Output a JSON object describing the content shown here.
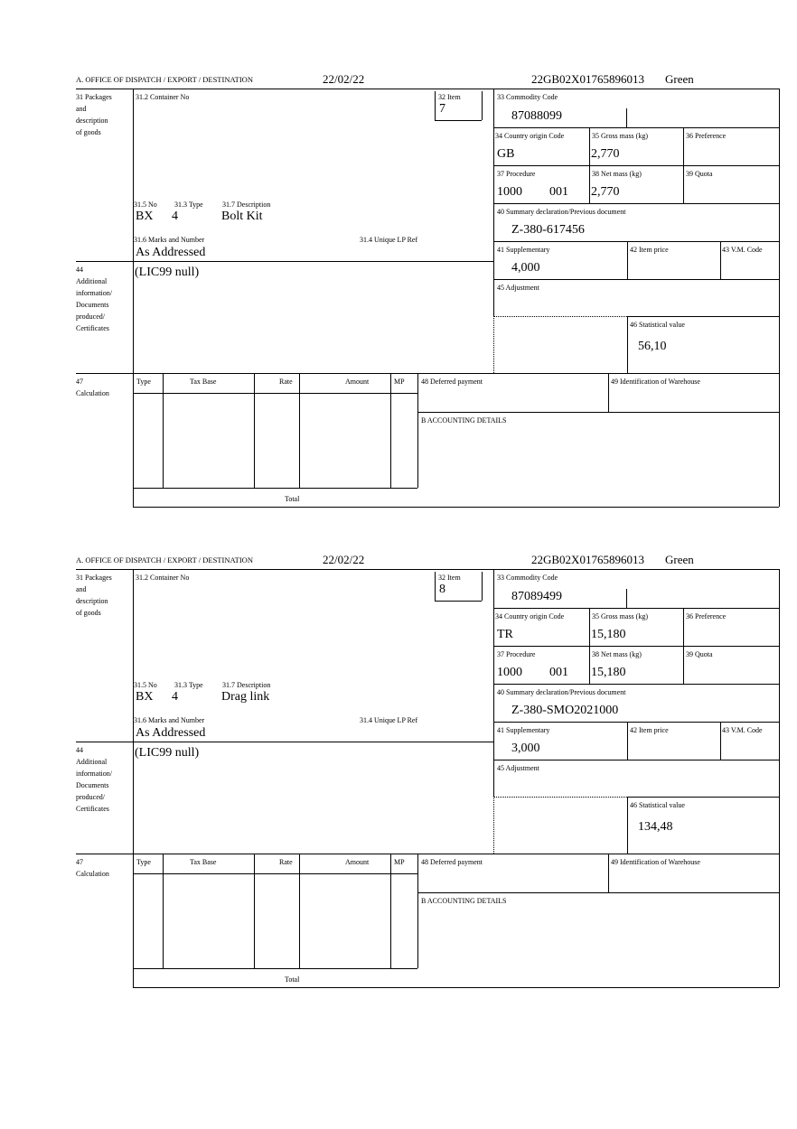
{
  "labels": {
    "office": "A.  OFFICE OF DISPATCH / EXPORT / DESTINATION",
    "packages": [
      "31 Packages",
      "and",
      "description",
      "of goods"
    ],
    "container_no": "31.2 Container No",
    "item": "32 Item",
    "commodity_code": "33 Commodity Code",
    "country_origin": "34 Country origin Code",
    "gross_mass": "35 Gross mass (kg)",
    "preference": "36 Preference",
    "procedure": "37 Procedure",
    "net_mass": "38 Net mass (kg)",
    "quota": "39 Quota",
    "summary_declaration": "40 Summary declaration/Previous document",
    "no": "31.5 No",
    "type": "31.3 Type",
    "description": "31.7 Description",
    "marks": "31.6 Marks and Number",
    "unique_lp_ref": "31.4 Unique LP Ref",
    "supplementary": "41 Supplementary",
    "item_price": "42 Item price",
    "vm_code": "43 V.M. Code",
    "additional_info": [
      "44",
      "Additional",
      "information/",
      "Documents",
      "produced/",
      "Certificates"
    ],
    "adjustment": "45 Adjustment",
    "statistical_value": "46 Statistical value",
    "calculation": [
      "47",
      "Calculation"
    ],
    "calc_columns": [
      "Type",
      "Tax Base",
      "Rate",
      "Amount",
      "MP"
    ],
    "deferred_payment": "48 Deferred payment",
    "warehouse": "49 Identification of Warehouse",
    "accounting": "B ACCOUNTING DETAILS",
    "total": "Total"
  },
  "forms": [
    {
      "date": "22/02/22",
      "reference": "22GB02X01765896013",
      "route": "Green",
      "item": "7",
      "commodity_code": "87088099",
      "country_origin": "GB",
      "gross_mass": "2,770",
      "procedure": "1000",
      "procedure_suffix": "001",
      "net_mass": "2,770",
      "summary_declaration": "Z-380-617456",
      "package_kind": "BX",
      "package_count": "4",
      "description": "Bolt Kit",
      "marks": "As Addressed",
      "supplementary": "4,000",
      "additional_info": "(LIC99 null)",
      "statistical_value": "56,10"
    },
    {
      "date": "22/02/22",
      "reference": "22GB02X01765896013",
      "route": "Green",
      "item": "8",
      "commodity_code": "87089499",
      "country_origin": "TR",
      "gross_mass": "15,180",
      "procedure": "1000",
      "procedure_suffix": "001",
      "net_mass": "15,180",
      "summary_declaration": "Z-380-SMO2021000",
      "package_kind": "BX",
      "package_count": "4",
      "description": "Drag link",
      "marks": "As Addressed",
      "supplementary": "3,000",
      "additional_info": "(LIC99 null)",
      "statistical_value": "134,48"
    }
  ]
}
